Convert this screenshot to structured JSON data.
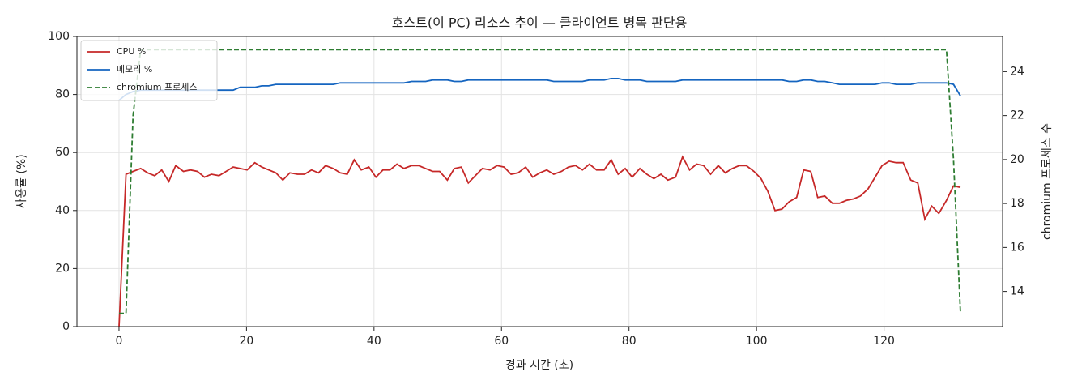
{
  "chart_data": {
    "type": "line",
    "title": "호스트(이 PC) 리소스 추이 — 클라이언트 병목 판단용",
    "x_label": "경과 시간 (초)",
    "y_label": "사용률 (%)",
    "y2_label": "chromium 프로세스 수",
    "x": [
      0,
      1.1,
      2.2,
      3.4,
      4.5,
      5.6,
      6.7,
      7.8,
      8.9,
      10.1,
      11.2,
      12.3,
      13.4,
      14.5,
      15.7,
      16.8,
      17.9,
      19.0,
      20.1,
      21.3,
      22.4,
      23.5,
      24.6,
      25.7,
      26.8,
      28.0,
      29.1,
      30.2,
      31.3,
      32.4,
      33.6,
      34.7,
      35.8,
      36.9,
      38.0,
      39.2,
      40.3,
      41.4,
      42.5,
      43.6,
      44.7,
      45.9,
      47.0,
      48.1,
      49.2,
      50.3,
      51.5,
      52.6,
      53.7,
      54.8,
      55.9,
      57.0,
      58.2,
      59.3,
      60.4,
      61.5,
      62.6,
      63.8,
      64.9,
      66.0,
      67.1,
      68.2,
      69.4,
      70.5,
      71.6,
      72.7,
      73.8,
      74.9,
      76.1,
      77.2,
      78.3,
      79.4,
      80.5,
      81.7,
      82.8,
      83.9,
      85.0,
      86.1,
      87.3,
      88.4,
      89.5,
      90.6,
      91.7,
      92.8,
      94.0,
      95.1,
      96.2,
      97.3,
      98.4,
      99.6,
      100.7,
      101.8,
      102.9,
      104.0,
      105.1,
      106.3,
      107.4,
      108.5,
      109.6,
      110.7,
      111.9,
      113.0,
      114.1,
      115.2,
      116.3,
      117.5,
      118.6,
      119.7,
      120.8,
      121.9,
      123.0,
      124.2,
      125.3,
      126.4,
      127.5,
      128.6,
      129.8,
      130.9,
      132.0
    ],
    "series": [
      {
        "name": "CPU %",
        "color": "#c62828",
        "values": [
          0,
          52.5,
          53.5,
          54.5,
          53,
          52,
          54,
          50,
          55.5,
          53.5,
          54,
          53.5,
          51.5,
          52.5,
          52,
          53.5,
          55,
          54.5,
          54,
          56.5,
          55,
          54,
          53,
          50.5,
          53,
          52.5,
          52.5,
          54,
          53,
          55.5,
          54.5,
          53,
          52.5,
          57.5,
          54,
          55,
          51.5,
          54,
          54,
          56,
          54.5,
          55.5,
          55.5,
          54.5,
          53.5,
          53.5,
          50.5,
          54.5,
          55,
          49.5,
          52,
          54.5,
          54,
          55.5,
          55,
          52.5,
          53,
          55,
          51.5,
          53,
          54,
          52.5,
          53.5,
          55,
          55.5,
          54,
          56,
          54,
          54,
          57.5,
          52.5,
          54.5,
          51.5,
          54.5,
          52.5,
          51,
          52.5,
          50.5,
          51.5,
          58.5,
          54,
          56,
          55.5,
          52.5,
          55.5,
          53,
          54.5,
          55.5,
          55.5,
          53.5,
          51,
          46.5,
          40,
          40.5,
          43,
          44.5,
          54,
          53.5,
          44.5,
          45,
          42.5,
          42.5,
          43.5,
          44,
          45,
          47.5,
          51.5,
          55.5,
          57,
          56.5,
          56.5,
          50.5,
          49.5,
          37,
          41.5,
          39,
          43.5,
          48.5,
          48
        ]
      },
      {
        "name": "메모리 %",
        "color": "#1565c0",
        "values": [
          78,
          80,
          81,
          81.5,
          81.5,
          81.5,
          81.5,
          81.5,
          81.5,
          81.5,
          81.5,
          81.5,
          81.5,
          81.5,
          81.5,
          81.5,
          81.5,
          82.5,
          82.5,
          82.5,
          83,
          83,
          83.5,
          83.5,
          83.5,
          83.5,
          83.5,
          83.5,
          83.5,
          83.5,
          83.5,
          84,
          84,
          84,
          84,
          84,
          84,
          84,
          84,
          84,
          84,
          84.5,
          84.5,
          84.5,
          85,
          85,
          85,
          84.5,
          84.5,
          85,
          85,
          85,
          85,
          85,
          85,
          85,
          85,
          85,
          85,
          85,
          85,
          84.5,
          84.5,
          84.5,
          84.5,
          84.5,
          85,
          85,
          85,
          85.5,
          85.5,
          85,
          85,
          85,
          84.5,
          84.5,
          84.5,
          84.5,
          84.5,
          85,
          85,
          85,
          85,
          85,
          85,
          85,
          85,
          85,
          85,
          85,
          85,
          85,
          85,
          85,
          84.5,
          84.5,
          85,
          85,
          84.5,
          84.5,
          84,
          83.5,
          83.5,
          83.5,
          83.5,
          83.5,
          83.5,
          84,
          84,
          83.5,
          83.5,
          83.5,
          84,
          84,
          84,
          84,
          84,
          83.5,
          79.5
        ]
      },
      {
        "name": "chromium 프로세스",
        "color": "#2e7d32",
        "axis": "y2",
        "dashed": true,
        "values": [
          13,
          13,
          22,
          25,
          25,
          25,
          25,
          25,
          25,
          25,
          25,
          25,
          25,
          25,
          25,
          25,
          25,
          25,
          25,
          25,
          25,
          25,
          25,
          25,
          25,
          25,
          25,
          25,
          25,
          25,
          25,
          25,
          25,
          25,
          25,
          25,
          25,
          25,
          25,
          25,
          25,
          25,
          25,
          25,
          25,
          25,
          25,
          25,
          25,
          25,
          25,
          25,
          25,
          25,
          25,
          25,
          25,
          25,
          25,
          25,
          25,
          25,
          25,
          25,
          25,
          25,
          25,
          25,
          25,
          25,
          25,
          25,
          25,
          25,
          25,
          25,
          25,
          25,
          25,
          25,
          25,
          25,
          25,
          25,
          25,
          25,
          25,
          25,
          25,
          25,
          25,
          25,
          25,
          25,
          25,
          25,
          25,
          25,
          25,
          25,
          25,
          25,
          25,
          25,
          25,
          25,
          25,
          25,
          25,
          25,
          25,
          25,
          25,
          25,
          25,
          25,
          25,
          20,
          13
        ]
      }
    ],
    "xlim": [
      -6.6,
      138.6
    ],
    "xticks": [
      0,
      20,
      40,
      60,
      80,
      100,
      120
    ],
    "ylim": [
      0,
      100
    ],
    "yticks": [
      0,
      20,
      40,
      60,
      80,
      100
    ],
    "y2lim": [
      12.4,
      25.6
    ],
    "y2ticks": [
      14,
      16,
      18,
      20,
      22,
      24
    ],
    "grid": true,
    "legend": "upper-left"
  }
}
